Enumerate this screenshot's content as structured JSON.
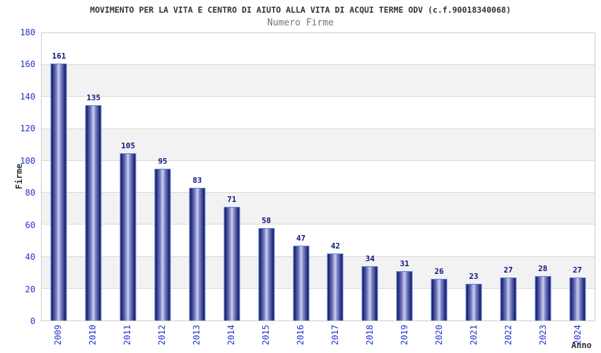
{
  "title": "MOVIMENTO PER LA VITA E CENTRO DI AIUTO ALLA VITA DI ACQUI TERME ODV (c.f.90018340068)",
  "subtitle": "Numero Firme",
  "chart_data": {
    "type": "bar",
    "categories": [
      "2009",
      "2010",
      "2011",
      "2012",
      "2013",
      "2014",
      "2015",
      "2016",
      "2017",
      "2018",
      "2019",
      "2020",
      "2021",
      "2022",
      "2023",
      "2024"
    ],
    "values": [
      161,
      135,
      105,
      95,
      83,
      71,
      58,
      47,
      42,
      34,
      31,
      26,
      23,
      27,
      28,
      27
    ],
    "title": "MOVIMENTO PER LA VITA E CENTRO DI AIUTO ALLA VITA DI ACQUI TERME ODV (c.f.90018340068)",
    "subtitle": "Numero Firme",
    "xlabel": "Anno",
    "ylabel": "Firme",
    "ylim": [
      0,
      180
    ],
    "ytick_step": 20,
    "grid": "horizontal-lines-with-alternating-bands",
    "legend": "none",
    "colors": {
      "title_text": "#333333",
      "subtitle_text": "#737373",
      "axis_tick_text": "#2433cb",
      "value_label_text": "#15157d",
      "axis_title_text": "#333333",
      "plot_border": "#cccccc",
      "gridline": "#d9d9d9",
      "band_gray": "#f2f2f2",
      "band_white": "#ffffff",
      "bar_border": "#5c85e0",
      "bar_edge": "#1f2473",
      "bar_mid": "#7d85c6",
      "bar_center_light": "#cdd1ee"
    }
  }
}
